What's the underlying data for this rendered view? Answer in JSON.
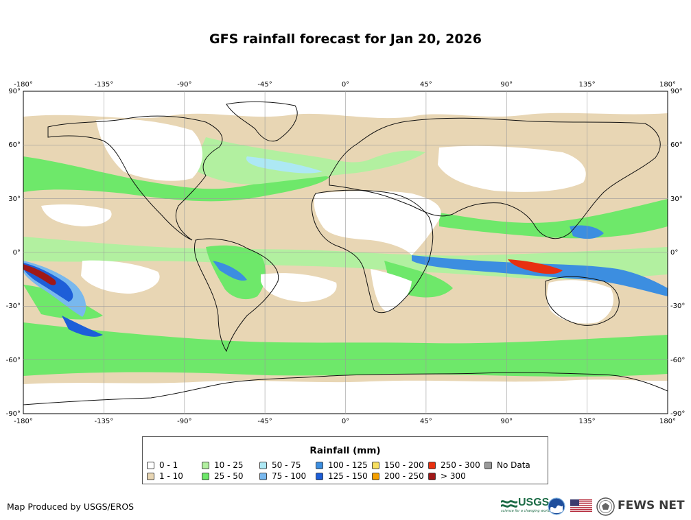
{
  "title": "GFS rainfall forecast for Jan 20, 2026",
  "map": {
    "lon_ticks": [
      "-180°",
      "-135°",
      "-90°",
      "-45°",
      "0°",
      "45°",
      "90°",
      "135°",
      "180°"
    ],
    "lat_ticks_left": [
      "90°",
      "60°",
      "30°",
      "0°",
      "-30°",
      "-60°",
      "-90°"
    ],
    "lat_ticks_right": [
      "90°",
      "60°",
      "30°",
      "0°",
      "-30°",
      "-60°",
      "-90°"
    ],
    "lon_range": [
      -180,
      180
    ],
    "lat_range": [
      -90,
      90
    ],
    "grid": true
  },
  "legend": {
    "title": "Rainfall (mm)",
    "items": [
      {
        "label": "0 - 1",
        "color": "#ffffff"
      },
      {
        "label": "1 - 10",
        "color": "#e8d6b4"
      },
      {
        "label": "10 - 25",
        "color": "#b2f0a0"
      },
      {
        "label": "25 - 50",
        "color": "#6ee86a"
      },
      {
        "label": "50 - 75",
        "color": "#ade8f4"
      },
      {
        "label": "75 - 100",
        "color": "#78b8ee"
      },
      {
        "label": "100 - 125",
        "color": "#3c8ee0"
      },
      {
        "label": "125 - 150",
        "color": "#1d5ed8"
      },
      {
        "label": "150 - 200",
        "color": "#f8e060"
      },
      {
        "label": "200 - 250",
        "color": "#f5a000"
      },
      {
        "label": "250 - 300",
        "color": "#e83010"
      },
      {
        "label": "> 300",
        "color": "#a01818"
      },
      {
        "label": "No Data",
        "color": "#9a9a9a"
      }
    ]
  },
  "credit": "Map Produced by USGS/EROS",
  "logos": {
    "usgs": "USGS",
    "usgs_tagline": "science for a changing world",
    "fews": "FEWS NET"
  }
}
